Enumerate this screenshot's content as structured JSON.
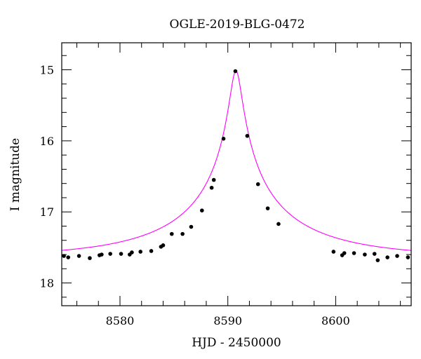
{
  "chart_data": {
    "type": "scatter",
    "title": "OGLE-2019-BLG-0472",
    "xlabel": "HJD - 2450000",
    "ylabel": "I magnitude",
    "xlim": [
      8574.6,
      8607
    ],
    "ylim": [
      18.32,
      14.62
    ],
    "y_inverted": true,
    "x_ticks": [
      8580,
      8590,
      8600
    ],
    "x_tick_labels": [
      "8580",
      "8590",
      "8600"
    ],
    "y_ticks": [
      15,
      16,
      17,
      18
    ],
    "y_tick_labels": [
      "15",
      "16",
      "17",
      "18"
    ],
    "grid": false,
    "legend": "none",
    "point_color": "#000000",
    "model_color": "#ff00ff",
    "series": [
      {
        "kind": "points",
        "x": [
          8574.8,
          8575.2,
          8576.2,
          8577.2,
          8578.1,
          8578.3,
          8579.1,
          8580.1,
          8580.9,
          8581.1,
          8581.9,
          8582.9,
          8583.8,
          8584.0,
          8584.8,
          8585.8,
          8586.6,
          8587.6,
          8588.5,
          8588.7,
          8589.6,
          8590.7,
          8591.8,
          8592.8,
          8593.7,
          8594.7,
          8599.8,
          8600.6,
          8600.8,
          8601.7,
          8602.7,
          8603.6,
          8603.9,
          8604.8,
          8605.7,
          8606.7
        ],
        "y": [
          17.62,
          17.64,
          17.62,
          17.65,
          17.61,
          17.6,
          17.59,
          17.59,
          17.6,
          17.57,
          17.56,
          17.55,
          17.49,
          17.47,
          17.31,
          17.31,
          17.21,
          16.98,
          16.66,
          16.55,
          15.97,
          15.02,
          15.93,
          16.61,
          16.95,
          17.17,
          17.56,
          17.61,
          17.58,
          17.58,
          17.6,
          17.59,
          17.68,
          17.64,
          17.62,
          17.64
        ]
      },
      {
        "kind": "model",
        "t0": 8590.75,
        "u0": 0.0385,
        "tE": 13.55,
        "base_mag": 17.64,
        "blend_fraction": 0.41
      }
    ]
  }
}
